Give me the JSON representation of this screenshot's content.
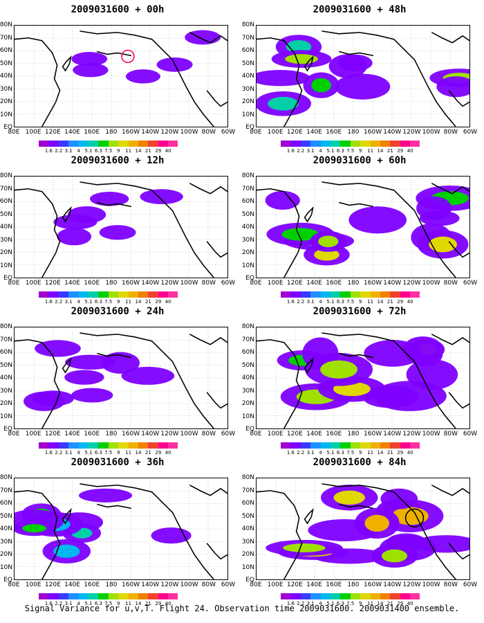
{
  "panels": [
    {
      "title": "2009031600 + 00h",
      "fill": [
        {
          "color": "#9b00ff",
          "alpha": 0.9
        }
      ]
    },
    {
      "title": "2009031600 + 12h",
      "fill": [
        {
          "color": "#9b00ff",
          "alpha": 0.9
        }
      ]
    },
    {
      "title": "2009031600 + 24h",
      "fill": [
        {
          "color": "#9b00ff",
          "alpha": 0.9
        }
      ]
    },
    {
      "title": "2009031600 + 36h",
      "fill": [
        {
          "color": "#9b00ff",
          "alpha": 0.9
        }
      ]
    },
    {
      "title": "2009031600 + 48h",
      "fill": [
        {
          "color": "#9b00ff",
          "alpha": 0.9
        }
      ]
    },
    {
      "title": "2009031600 + 60h",
      "fill": [
        {
          "color": "#9b00ff",
          "alpha": 0.9
        }
      ]
    },
    {
      "title": "2009031600 + 72h",
      "fill": [
        {
          "color": "#9b00ff",
          "alpha": 0.9
        }
      ]
    },
    {
      "title": "2009031600 + 84h",
      "fill": [
        {
          "color": "#9b00ff",
          "alpha": 0.9
        }
      ]
    }
  ],
  "lat_labels": [
    "80N",
    "70N",
    "60N",
    "50N",
    "40N",
    "30N",
    "20N",
    "10N",
    "EQ"
  ],
  "lon_labels": [
    "80E",
    "100E",
    "120E",
    "140E",
    "160E",
    "180",
    "160W",
    "140W",
    "120W",
    "100W",
    "80W",
    "60W"
  ],
  "colorbar": {
    "colors": [
      "#a000d0",
      "#7e00ff",
      "#3a3aff",
      "#1e90ff",
      "#00b8ee",
      "#00cfa8",
      "#00d000",
      "#a0e000",
      "#e0d800",
      "#f0b000",
      "#f08000",
      "#f04030",
      "#ff0090"
    ],
    "labels": [
      "1.6",
      "2.2",
      "3.1",
      "4",
      "5.1",
      "6.3",
      "7.5",
      "9",
      "11",
      "14",
      "21",
      "29",
      "40"
    ]
  },
  "caption": "Signal Variance for u,v,T. Flight 24. Observation time 2009031600. 2009031400 ensemble."
}
